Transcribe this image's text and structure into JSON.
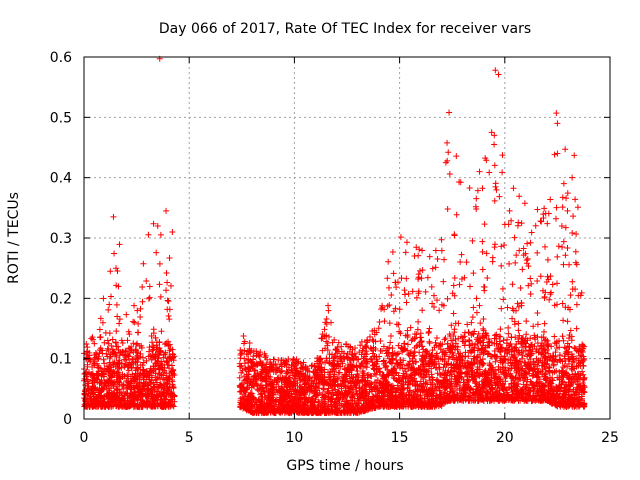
{
  "chart_data": {
    "type": "scatter",
    "title": "Day 066 of 2017, Rate Of TEC Index for receiver vars",
    "xlabel": "GPS time / hours",
    "ylabel": "ROTI / TECUs",
    "xlim": [
      0,
      25
    ],
    "ylim": [
      0,
      0.6
    ],
    "xticks": [
      0,
      5,
      10,
      15,
      20,
      25
    ],
    "yticks": [
      0,
      0.1,
      0.2,
      0.3,
      0.4,
      0.5,
      0.6
    ],
    "xtick_labels": [
      "0",
      "5",
      "10",
      "15",
      "20",
      "25"
    ],
    "ytick_labels": [
      "0",
      "0.1",
      "0.2",
      "0.3",
      "0.4",
      "0.5",
      "0.6"
    ],
    "grid": true,
    "marker": "+",
    "marker_color": "#ff0000",
    "series": [
      {
        "name": "ROTI",
        "envelope": [
          {
            "x": 0.0,
            "y_min": 0.02,
            "y_max": 0.13
          },
          {
            "x": 0.5,
            "y_min": 0.02,
            "y_max": 0.14
          },
          {
            "x": 1.0,
            "y_min": 0.02,
            "y_max": 0.22
          },
          {
            "x": 1.5,
            "y_min": 0.02,
            "y_max": 0.34
          },
          {
            "x": 2.0,
            "y_min": 0.02,
            "y_max": 0.3
          },
          {
            "x": 2.5,
            "y_min": 0.02,
            "y_max": 0.24
          },
          {
            "x": 3.0,
            "y_min": 0.02,
            "y_max": 0.32
          },
          {
            "x": 3.5,
            "y_min": 0.02,
            "y_max": 0.34
          },
          {
            "x": 4.0,
            "y_min": 0.02,
            "y_max": 0.3
          },
          {
            "x": 4.3,
            "y_min": 0.02,
            "y_max": 0.18
          },
          {
            "x": 7.4,
            "y_min": 0.02,
            "y_max": 0.15
          },
          {
            "x": 8.0,
            "y_min": 0.01,
            "y_max": 0.12
          },
          {
            "x": 9.0,
            "y_min": 0.01,
            "y_max": 0.1
          },
          {
            "x": 10.0,
            "y_min": 0.01,
            "y_max": 0.1
          },
          {
            "x": 11.0,
            "y_min": 0.01,
            "y_max": 0.09
          },
          {
            "x": 11.6,
            "y_min": 0.01,
            "y_max": 0.19
          },
          {
            "x": 12.0,
            "y_min": 0.01,
            "y_max": 0.13
          },
          {
            "x": 13.0,
            "y_min": 0.01,
            "y_max": 0.12
          },
          {
            "x": 14.0,
            "y_min": 0.02,
            "y_max": 0.16
          },
          {
            "x": 14.5,
            "y_min": 0.02,
            "y_max": 0.27
          },
          {
            "x": 15.0,
            "y_min": 0.02,
            "y_max": 0.31
          },
          {
            "x": 16.0,
            "y_min": 0.02,
            "y_max": 0.28
          },
          {
            "x": 17.0,
            "y_min": 0.02,
            "y_max": 0.36
          },
          {
            "x": 17.3,
            "y_min": 0.03,
            "y_max": 0.51
          },
          {
            "x": 18.0,
            "y_min": 0.03,
            "y_max": 0.38
          },
          {
            "x": 19.0,
            "y_min": 0.03,
            "y_max": 0.42
          },
          {
            "x": 19.5,
            "y_min": 0.03,
            "y_max": 0.58
          },
          {
            "x": 20.0,
            "y_min": 0.03,
            "y_max": 0.4
          },
          {
            "x": 21.0,
            "y_min": 0.03,
            "y_max": 0.36
          },
          {
            "x": 22.0,
            "y_min": 0.03,
            "y_max": 0.35
          },
          {
            "x": 22.5,
            "y_min": 0.02,
            "y_max": 0.51
          },
          {
            "x": 23.0,
            "y_min": 0.02,
            "y_max": 0.44
          },
          {
            "x": 23.5,
            "y_min": 0.02,
            "y_max": 0.35
          },
          {
            "x": 23.8,
            "y_min": 0.02,
            "y_max": 0.15
          }
        ],
        "notable_points": [
          {
            "x": 3.6,
            "y": 0.597
          },
          {
            "x": 17.35,
            "y": 0.508
          },
          {
            "x": 19.55,
            "y": 0.578
          },
          {
            "x": 19.7,
            "y": 0.571
          },
          {
            "x": 19.5,
            "y": 0.47
          },
          {
            "x": 22.45,
            "y": 0.507
          },
          {
            "x": 22.5,
            "y": 0.49
          },
          {
            "x": 22.5,
            "y": 0.44
          },
          {
            "x": 23.3,
            "y": 0.437
          },
          {
            "x": 23.2,
            "y": 0.4
          },
          {
            "x": 17.2,
            "y": 0.425
          },
          {
            "x": 18.8,
            "y": 0.41
          },
          {
            "x": 11.6,
            "y": 0.188
          },
          {
            "x": 1.4,
            "y": 0.335
          },
          {
            "x": 3.9,
            "y": 0.345
          },
          {
            "x": 4.2,
            "y": 0.31
          }
        ]
      }
    ]
  }
}
